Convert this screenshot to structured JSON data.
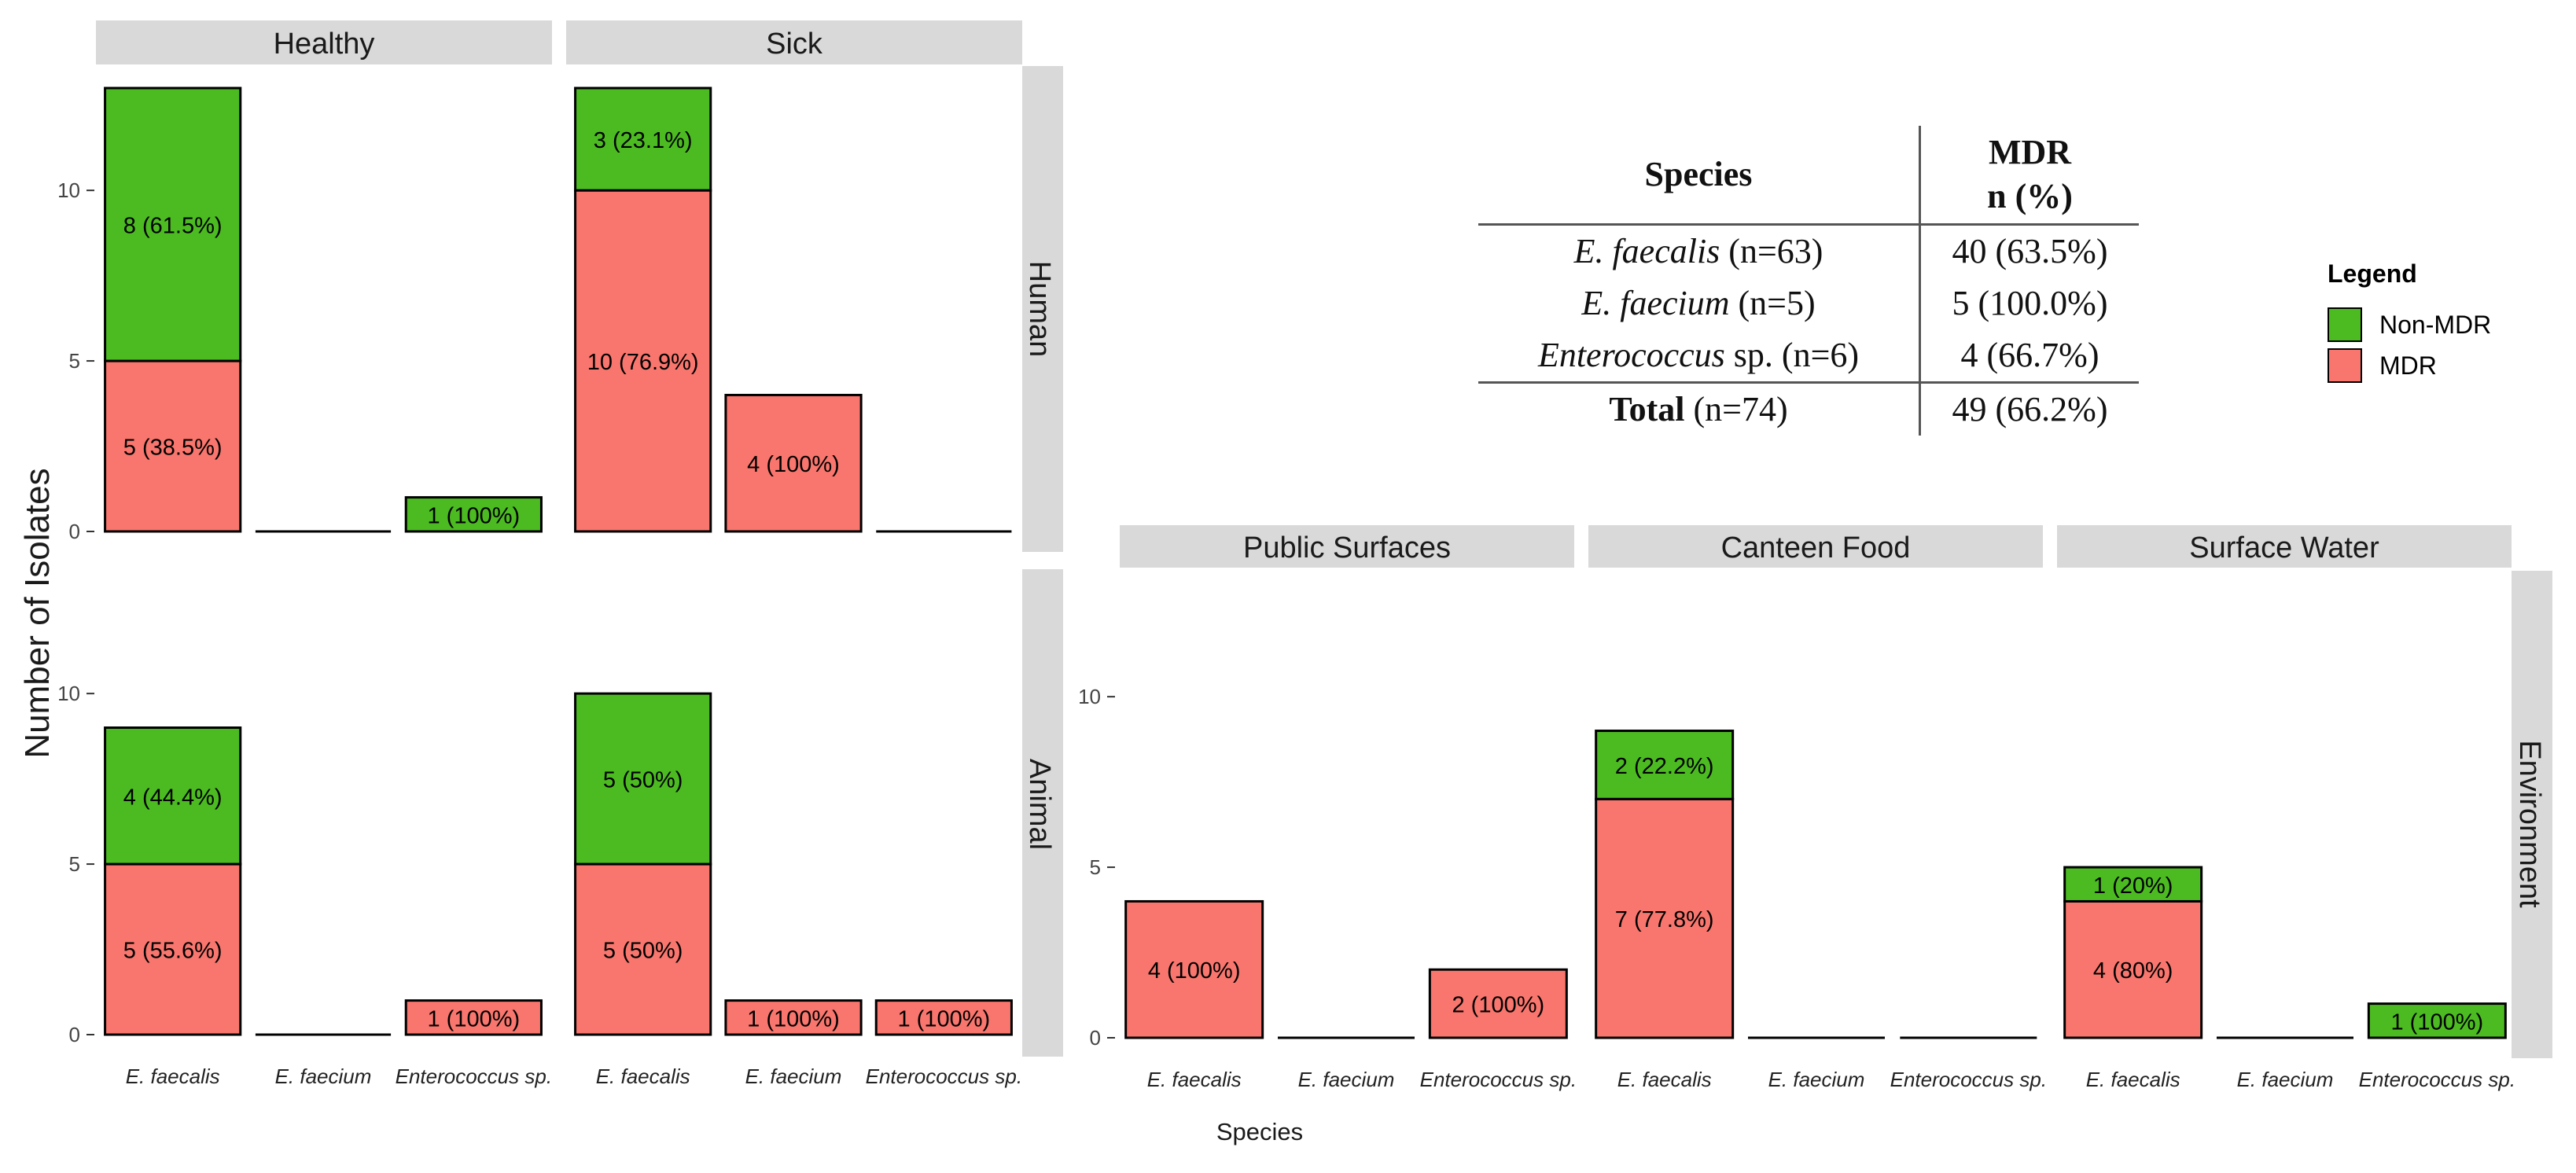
{
  "chart_data": {
    "type": "bar",
    "stacked": true,
    "ylabel": "Number of Isolates",
    "xlabel": "Species",
    "categories": [
      "E. faecalis",
      "E. faecium",
      "Enterococcus sp."
    ],
    "series_order": [
      "MDR",
      "Non-MDR"
    ],
    "colors": {
      "MDR": "#F8766D",
      "Non-MDR": "#4CBB22",
      "strip": "#d9d9d9",
      "axis": "#333333"
    },
    "ylim": [
      0,
      13
    ],
    "yticks": [
      0,
      5,
      10
    ],
    "row_strips": {
      "human": "Human",
      "animal": "Animal",
      "environment": "Environment"
    },
    "panels": [
      {
        "col": "Healthy",
        "row": "Human",
        "bars": [
          {
            "MDR": 5,
            "MDR_label": "5 (38.5%)",
            "Non-MDR": 8,
            "Non-MDR_label": "8 (61.5%)"
          },
          {
            "MDR": 0,
            "Non-MDR": 0
          },
          {
            "MDR": 0,
            "Non-MDR": 1,
            "Non-MDR_label": "1 (100%)"
          }
        ]
      },
      {
        "col": "Sick",
        "row": "Human",
        "bars": [
          {
            "MDR": 10,
            "MDR_label": "10 (76.9%)",
            "Non-MDR": 3,
            "Non-MDR_label": "3 (23.1%)"
          },
          {
            "MDR": 4,
            "MDR_label": "4 (100%)",
            "Non-MDR": 0
          },
          {
            "MDR": 0,
            "Non-MDR": 0
          }
        ]
      },
      {
        "col": "Healthy",
        "row": "Animal",
        "bars": [
          {
            "MDR": 5,
            "MDR_label": "5 (55.6%)",
            "Non-MDR": 4,
            "Non-MDR_label": "4 (44.4%)"
          },
          {
            "MDR": 0,
            "Non-MDR": 0
          },
          {
            "MDR": 1,
            "MDR_label": "1 (100%)",
            "Non-MDR": 0
          }
        ]
      },
      {
        "col": "Sick",
        "row": "Animal",
        "bars": [
          {
            "MDR": 5,
            "MDR_label": "5 (50%)",
            "Non-MDR": 5,
            "Non-MDR_label": "5 (50%)"
          },
          {
            "MDR": 1,
            "MDR_label": "1 (100%)",
            "Non-MDR": 0
          },
          {
            "MDR": 1,
            "MDR_label": "1 (100%)",
            "Non-MDR": 0
          }
        ]
      },
      {
        "col": "Public Surfaces",
        "row": "Environment",
        "bars": [
          {
            "MDR": 4,
            "MDR_label": "4 (100%)",
            "Non-MDR": 0
          },
          {
            "MDR": 0,
            "Non-MDR": 0
          },
          {
            "MDR": 2,
            "MDR_label": "2 (100%)",
            "Non-MDR": 0
          }
        ]
      },
      {
        "col": "Canteen Food",
        "row": "Environment",
        "bars": [
          {
            "MDR": 7,
            "MDR_label": "7 (77.8%)",
            "Non-MDR": 2,
            "Non-MDR_label": "2 (22.2%)"
          },
          {
            "MDR": 0,
            "Non-MDR": 0
          },
          {
            "MDR": 0,
            "Non-MDR": 0
          }
        ]
      },
      {
        "col": "Surface Water",
        "row": "Environment",
        "bars": [
          {
            "MDR": 4,
            "MDR_label": "4 (80%)",
            "Non-MDR": 1,
            "Non-MDR_label": "1 (20%)"
          },
          {
            "MDR": 0,
            "Non-MDR": 0
          },
          {
            "MDR": 0,
            "Non-MDR": 1,
            "Non-MDR_label": "1 (100%)"
          }
        ]
      }
    ],
    "legend": {
      "title": "Legend",
      "items": [
        {
          "name": "Non-MDR"
        },
        {
          "name": "MDR"
        }
      ]
    },
    "table": {
      "headers": [
        "Species",
        "MDR",
        "n (%)"
      ],
      "rows": [
        {
          "species_italic": "E. faecalis",
          "species_rest": " (n=63)",
          "mdr": "40 (63.5%)"
        },
        {
          "species_italic": "E. faecium",
          "species_rest": " (n=5)",
          "mdr": "5 (100.0%)"
        },
        {
          "species_italic": "Enterococcus",
          "species_rest": " sp. (n=6)",
          "mdr": "4 (66.7%)"
        }
      ],
      "total": {
        "label_bold": "Total",
        "label_rest": " (n=74)",
        "mdr": "49 (66.2%)"
      }
    }
  }
}
